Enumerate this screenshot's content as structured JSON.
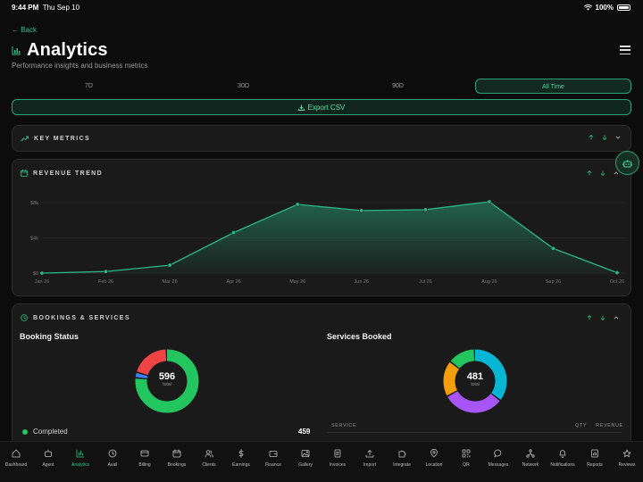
{
  "status": {
    "time": "9:44 PM",
    "date": "Thu Sep 10",
    "battery": "100%"
  },
  "header": {
    "back_label": "← Back",
    "title": "Analytics",
    "subtitle": "Performance insights and business metrics"
  },
  "range_tabs": [
    {
      "label": "7D",
      "active": false
    },
    {
      "label": "30D",
      "active": false
    },
    {
      "label": "90D",
      "active": false
    },
    {
      "label": "All Time",
      "active": true
    }
  ],
  "export_label": "Export CSV",
  "sections": {
    "key_metrics": "KEY METRICS",
    "revenue_trend": "REVENUE TREND",
    "bookings_services": "BOOKINGS & SERVICES"
  },
  "chart_data": {
    "type": "area",
    "categories": [
      "Jan 26",
      "Feb 26",
      "Mar 26",
      "Apr 26",
      "May 26",
      "Jun 26",
      "Jul 26",
      "Aug 26",
      "Sep 26",
      "Oct 26"
    ],
    "y_ticks": [
      "$8k",
      "$4k",
      "$0"
    ],
    "ylim": [
      0,
      8000
    ],
    "values": [
      0,
      180,
      900,
      4600,
      7800,
      7100,
      7200,
      8100,
      2800,
      50
    ],
    "color": "#2bb889"
  },
  "booking_status": {
    "title": "Booking Status",
    "total": "596",
    "total_label": "total",
    "segments": [
      {
        "name": "Completed",
        "value": 459,
        "color": "#22c55e"
      },
      {
        "name": "other-blue",
        "value": 17,
        "color": "#3b82f6"
      },
      {
        "name": "other-red",
        "value": 120,
        "color": "#ef4444"
      }
    ],
    "legend": [
      {
        "label": "Completed",
        "value": "459",
        "color": "#22c55e"
      }
    ]
  },
  "services_booked": {
    "title": "Services Booked",
    "total": "481",
    "total_label": "total",
    "segments": [
      {
        "value": 172,
        "color": "#06b6d4"
      },
      {
        "value": 152,
        "color": "#a855f7"
      },
      {
        "value": 89,
        "color": "#f59e0b"
      },
      {
        "value": 68,
        "color": "#22c55e"
      }
    ],
    "columns": [
      "SERVICE",
      "QTY",
      "REVENUE"
    ]
  },
  "nav": [
    {
      "label": "Dashboard",
      "icon": "home-icon",
      "active": false
    },
    {
      "label": "Agent",
      "icon": "robot-icon",
      "active": false
    },
    {
      "label": "Analytics",
      "icon": "bar-chart-icon",
      "active": true
    },
    {
      "label": "Avail",
      "icon": "clock-icon",
      "active": false
    },
    {
      "label": "Billing",
      "icon": "card-icon",
      "active": false
    },
    {
      "label": "Bookings",
      "icon": "calendar-icon",
      "active": false
    },
    {
      "label": "Clients",
      "icon": "users-icon",
      "active": false
    },
    {
      "label": "Earnings",
      "icon": "dollar-icon",
      "active": false
    },
    {
      "label": "Finance",
      "icon": "wallet-icon",
      "active": false
    },
    {
      "label": "Gallery",
      "icon": "image-icon",
      "active": false
    },
    {
      "label": "Invoices",
      "icon": "document-icon",
      "active": false
    },
    {
      "label": "Import",
      "icon": "upload-icon",
      "active": false
    },
    {
      "label": "Integrate",
      "icon": "puzzle-icon",
      "active": false
    },
    {
      "label": "Location",
      "icon": "pin-icon",
      "active": false
    },
    {
      "label": "QR",
      "icon": "qr-icon",
      "active": false
    },
    {
      "label": "Messages",
      "icon": "chat-icon",
      "active": false
    },
    {
      "label": "Network",
      "icon": "network-icon",
      "active": false
    },
    {
      "label": "Notifications",
      "icon": "bell-icon",
      "active": false
    },
    {
      "label": "Reports",
      "icon": "report-icon",
      "active": false
    },
    {
      "label": "Reviews",
      "icon": "star-icon",
      "active": false
    }
  ]
}
